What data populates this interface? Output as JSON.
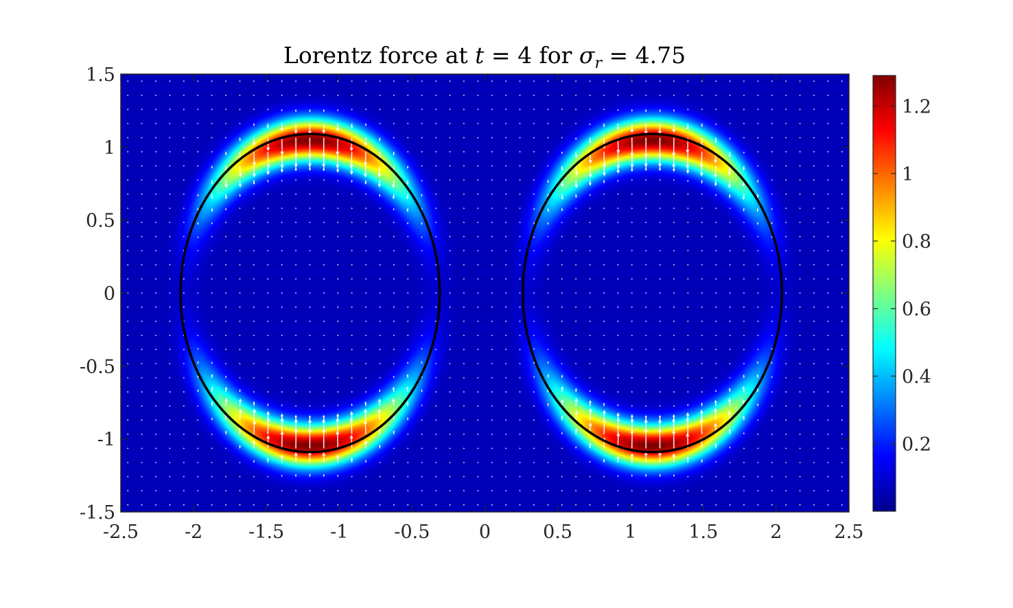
{
  "chart_data": {
    "type": "heatmap",
    "title": {
      "prefix": "Lorentz force at ",
      "var_t": "t",
      "eq1": " = 4 for ",
      "var_sigma": "σ",
      "sub_r": "r",
      "eq2": " = 4.75"
    },
    "xlabel": "",
    "ylabel": "",
    "xlim": [
      -2.5,
      2.5
    ],
    "ylim": [
      -1.5,
      1.5
    ],
    "xticks": [
      "-2.5",
      "-2",
      "-1.5",
      "-1",
      "-0.5",
      "0",
      "0.5",
      "1",
      "1.5",
      "2",
      "2.5"
    ],
    "xtick_values": [
      -2.5,
      -2,
      -1.5,
      -1,
      -0.5,
      0,
      0.5,
      1,
      1.5,
      2,
      2.5
    ],
    "yticks": [
      "1.5",
      "1",
      "0.5",
      "0",
      "-0.5",
      "-1",
      "-1.5"
    ],
    "ytick_values": [
      1.5,
      1,
      0.5,
      0,
      -0.5,
      -1,
      -1.5
    ],
    "colorbar": {
      "colormap": "jet",
      "range": [
        0,
        1.29
      ],
      "ticks": [
        "1.2",
        "1",
        "0.8",
        "0.6",
        "0.4",
        "0.2"
      ],
      "tick_values": [
        1.2,
        1.0,
        0.8,
        0.6,
        0.4,
        0.2
      ]
    },
    "rings": [
      {
        "cx": -1.2,
        "cy": 0,
        "rx": 0.89,
        "ry": 1.08,
        "peak": 1.29
      },
      {
        "cx": 1.15,
        "cy": 0,
        "rx": 0.89,
        "ry": 1.08,
        "peak": 1.29
      }
    ],
    "contours": [
      {
        "cx": -1.2,
        "cy": 0,
        "rx": 0.89,
        "ry": 1.09,
        "color": "#000000"
      },
      {
        "cx": 1.15,
        "cy": 0,
        "rx": 0.89,
        "ry": 1.09,
        "color": "#000000"
      }
    ],
    "quiver": {
      "color": "#ffffff",
      "nx": 52,
      "ny": 31
    }
  }
}
